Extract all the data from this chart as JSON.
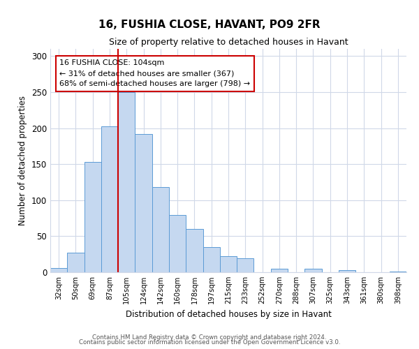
{
  "title": "16, FUSHIA CLOSE, HAVANT, PO9 2FR",
  "subtitle": "Size of property relative to detached houses in Havant",
  "xlabel": "Distribution of detached houses by size in Havant",
  "ylabel": "Number of detached properties",
  "categories": [
    "32sqm",
    "50sqm",
    "69sqm",
    "87sqm",
    "105sqm",
    "124sqm",
    "142sqm",
    "160sqm",
    "178sqm",
    "197sqm",
    "215sqm",
    "233sqm",
    "252sqm",
    "270sqm",
    "288sqm",
    "307sqm",
    "325sqm",
    "343sqm",
    "361sqm",
    "380sqm",
    "398sqm"
  ],
  "values": [
    6,
    27,
    153,
    202,
    250,
    192,
    118,
    79,
    60,
    35,
    22,
    19,
    0,
    5,
    0,
    5,
    0,
    3,
    0,
    0,
    1
  ],
  "bar_color": "#c5d8f0",
  "bar_edge_color": "#5b9bd5",
  "vline_x": 3.5,
  "vline_color": "#cc0000",
  "annotation_text": "16 FUSHIA CLOSE: 104sqm\n← 31% of detached houses are smaller (367)\n68% of semi-detached houses are larger (798) →",
  "annotation_box_color": "#ffffff",
  "annotation_box_edge": "#cc0000",
  "ylim": [
    0,
    310
  ],
  "yticks": [
    0,
    50,
    100,
    150,
    200,
    250,
    300
  ],
  "footer1": "Contains HM Land Registry data © Crown copyright and database right 2024.",
  "footer2": "Contains public sector information licensed under the Open Government Licence v3.0.",
  "bg_color": "#ffffff",
  "grid_color": "#d0d8e8",
  "title_fontsize": 11,
  "subtitle_fontsize": 9
}
